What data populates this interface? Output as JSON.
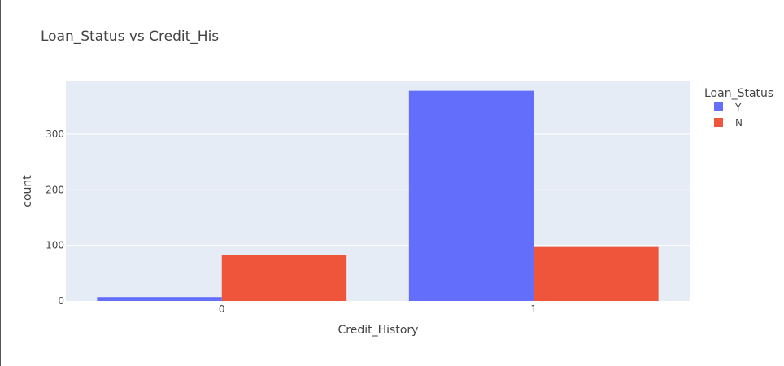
{
  "chart_data": {
    "type": "bar",
    "title": "Loan_Status vs Credit_His",
    "xlabel": "Credit_History",
    "ylabel": "count",
    "categories": [
      "0",
      "1"
    ],
    "series": [
      {
        "name": "Y",
        "values": [
          7,
          378
        ],
        "color": "#636efa"
      },
      {
        "name": "N",
        "values": [
          82,
          97
        ],
        "color": "#ef553b"
      }
    ],
    "ylim": [
      0,
      395
    ],
    "yticks": [
      0,
      100,
      200,
      300
    ],
    "legend_title": "Loan_Status",
    "legend_position": "right",
    "grid": true,
    "plot_background": "#e5ecf6"
  }
}
